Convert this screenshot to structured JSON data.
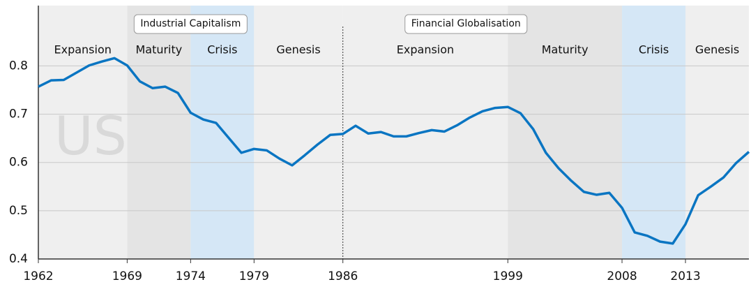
{
  "chart_data": {
    "type": "line",
    "x": [
      1962,
      1963,
      1964,
      1965,
      1966,
      1967,
      1968,
      1969,
      1970,
      1971,
      1972,
      1973,
      1974,
      1975,
      1976,
      1977,
      1978,
      1979,
      1980,
      1981,
      1982,
      1983,
      1984,
      1985,
      1986,
      1987,
      1988,
      1989,
      1990,
      1991,
      1992,
      1993,
      1994,
      1995,
      1996,
      1997,
      1998,
      1999,
      2000,
      2001,
      2002,
      2003,
      2004,
      2005,
      2006,
      2007,
      2008,
      2009,
      2010,
      2011,
      2012,
      2013,
      2014,
      2015,
      2016,
      2017,
      2018
    ],
    "series": [
      {
        "name": "US",
        "color": "#0a75c2",
        "values": [
          0.757,
          0.77,
          0.771,
          0.786,
          0.801,
          0.809,
          0.816,
          0.801,
          0.768,
          0.754,
          0.757,
          0.744,
          0.703,
          0.689,
          0.682,
          0.651,
          0.62,
          0.628,
          0.625,
          0.608,
          0.594,
          0.615,
          0.637,
          0.657,
          0.659,
          0.676,
          0.66,
          0.663,
          0.654,
          0.654,
          0.661,
          0.667,
          0.664,
          0.677,
          0.693,
          0.706,
          0.713,
          0.715,
          0.702,
          0.669,
          0.62,
          0.588,
          0.562,
          0.539,
          0.533,
          0.537,
          0.506,
          0.455,
          0.448,
          0.436,
          0.432,
          0.472,
          0.532,
          0.55,
          0.569,
          0.599,
          0.622
        ]
      }
    ],
    "xlim": [
      1962,
      2018
    ],
    "xticks": [
      1962,
      1969,
      1974,
      1979,
      1986,
      1999,
      2008,
      2013
    ],
    "ylim": [
      0.4,
      0.925
    ],
    "yticks": [
      0.4,
      0.5,
      0.6,
      0.7,
      0.8
    ],
    "grid": true,
    "eras": [
      {
        "label": "Industrial Capitalism",
        "start": 1962,
        "end": 1986
      },
      {
        "label": "Financial Globalisation",
        "start": 1986,
        "end": 2018
      }
    ],
    "phases": [
      {
        "label": "Expansion",
        "start": 1962,
        "end": 1969,
        "color": "#efefef"
      },
      {
        "label": "Maturity",
        "start": 1969,
        "end": 1974,
        "color": "#e4e4e4"
      },
      {
        "label": "Crisis",
        "start": 1974,
        "end": 1979,
        "color": "#d5e7f6"
      },
      {
        "label": "Genesis",
        "start": 1979,
        "end": 1986,
        "color": "#efefef"
      },
      {
        "label": "Expansion",
        "start": 1986,
        "end": 1999,
        "color": "#efefef"
      },
      {
        "label": "Maturity",
        "start": 1999,
        "end": 2008,
        "color": "#e4e4e4"
      },
      {
        "label": "Crisis",
        "start": 2008,
        "end": 2013,
        "color": "#d5e7f6"
      },
      {
        "label": "Genesis",
        "start": 2013,
        "end": 2018,
        "color": "#efefef"
      }
    ]
  }
}
